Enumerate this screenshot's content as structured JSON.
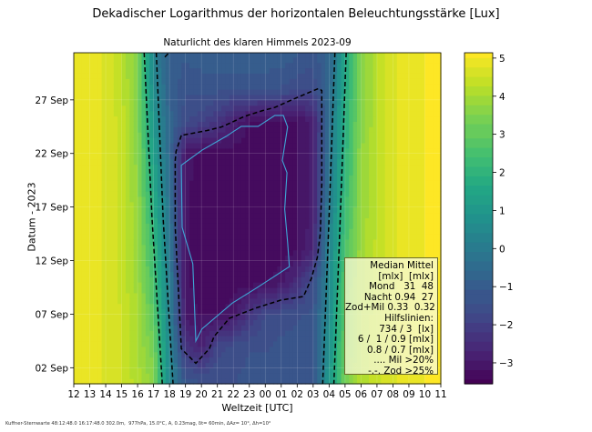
{
  "title": "Dekadischer Logarithmus der horizontalen Beleuchtungsstärke [Lux]",
  "footer": "Kuffner-Sternwarte 48:12:48.0 16:17:48.0 302.0m,  977hPa, 15.0°C, A, 0.23mag, δt= 60min, ΔAz= 10°, Δh=10°",
  "legend": {
    "lines": [
      "Median Mittel",
      "[mlx]  [mlx]",
      "Mond   31  48",
      "Nacht 0.94  27",
      "Zod+Mil 0.33  0.32",
      "Hilfslinien:",
      "734 / 3  [lx]",
      "6 /  1 / 0.9 [mlx]",
      "0.8 / 0.7 [mlx]",
      ".... Mil >20%",
      "-.-. Zod >25%"
    ]
  },
  "chart_data": {
    "type": "heatmap",
    "title": "Naturlicht des klaren Himmels 2023-09",
    "xlabel": "Weltzeit [UTC]",
    "ylabel": "Datum - 2023",
    "colormap": "viridis",
    "x_ticklabels": [
      "12",
      "13",
      "14",
      "15",
      "16",
      "17",
      "18",
      "19",
      "20",
      "21",
      "22",
      "23",
      "00",
      "01",
      "02",
      "03",
      "04",
      "05",
      "06",
      "07",
      "08",
      "09",
      "10",
      "11"
    ],
    "x_hours_since_12utc_range": [
      0,
      23
    ],
    "y_ticks": [
      {
        "day": 2,
        "label": "02 Sep"
      },
      {
        "day": 7,
        "label": "07 Sep"
      },
      {
        "day": 12,
        "label": "12 Sep"
      },
      {
        "day": 17,
        "label": "17 Sep"
      },
      {
        "day": 22,
        "label": "22 Sep"
      },
      {
        "day": 27,
        "label": "27 Sep"
      }
    ],
    "y_day_range": [
      0.5,
      31.4
    ],
    "colorbar": {
      "range": [
        -3.55,
        5.14
      ],
      "ticks": [
        5,
        4,
        3,
        2,
        1,
        0,
        -1,
        -2,
        -3
      ],
      "tick_labels": [
        "5",
        "4",
        "3",
        "2",
        "1",
        "0",
        "−1",
        "−2",
        "−3"
      ]
    },
    "grid": true,
    "legend_placement": "bottom-right",
    "z_rows_days": [
      1,
      4,
      7,
      10,
      13,
      16,
      19,
      22,
      25,
      28,
      31
    ],
    "z_log10_lux": [
      [
        5.0,
        4.9,
        4.7,
        4.5,
        4.1,
        3.6,
        0.5,
        -1.3,
        -1.4,
        -1.4,
        -1.4,
        -1.3,
        -1.3,
        -1.3,
        -1.3,
        -1.2,
        1.0,
        3.3,
        4.1,
        4.4,
        4.7,
        4.9,
        5.0,
        5.1
      ],
      [
        5.0,
        4.9,
        4.7,
        4.5,
        4.0,
        3.3,
        0.4,
        -2.2,
        -2.8,
        -1.8,
        -1.5,
        -1.4,
        -1.4,
        -1.3,
        -1.3,
        -1.2,
        0.8,
        3.1,
        4.0,
        4.4,
        4.7,
        4.9,
        5.0,
        5.1
      ],
      [
        5.0,
        4.9,
        4.7,
        4.5,
        4.0,
        2.9,
        0.2,
        -3.0,
        -3.2,
        -3.2,
        -3.0,
        -2.2,
        -1.6,
        -1.5,
        -1.4,
        -1.3,
        0.6,
        2.9,
        4.0,
        4.4,
        4.7,
        4.9,
        5.0,
        5.1
      ],
      [
        5.0,
        4.9,
        4.7,
        4.4,
        3.9,
        2.6,
        0.1,
        -3.1,
        -3.3,
        -3.3,
        -3.3,
        -3.3,
        -3.2,
        -3.0,
        -2.4,
        -1.5,
        0.5,
        2.8,
        3.9,
        4.3,
        4.7,
        4.9,
        5.0,
        5.1
      ],
      [
        5.0,
        4.9,
        4.7,
        4.4,
        3.8,
        2.3,
        -0.1,
        -3.1,
        -3.3,
        -3.3,
        -3.3,
        -3.3,
        -3.3,
        -3.3,
        -3.2,
        -2.6,
        0.3,
        2.6,
        3.9,
        4.3,
        4.7,
        4.9,
        5.0,
        5.1
      ],
      [
        5.0,
        4.9,
        4.7,
        4.4,
        3.8,
        2.0,
        -0.3,
        -3.1,
        -3.3,
        -3.3,
        -3.3,
        -3.3,
        -3.3,
        -3.3,
        -3.2,
        -2.8,
        0.1,
        2.4,
        3.8,
        4.3,
        4.7,
        4.9,
        5.0,
        5.1
      ],
      [
        5.0,
        4.9,
        4.7,
        4.4,
        3.7,
        1.6,
        -0.4,
        -3.1,
        -3.3,
        -3.3,
        -3.3,
        -3.3,
        -3.3,
        -3.3,
        -3.2,
        -2.8,
        -0.1,
        2.2,
        3.7,
        4.3,
        4.7,
        4.9,
        5.0,
        5.1
      ],
      [
        5.0,
        4.9,
        4.7,
        4.4,
        3.6,
        1.3,
        -0.6,
        -3.0,
        -3.3,
        -3.3,
        -3.3,
        -3.3,
        -3.3,
        -3.3,
        -3.2,
        -2.8,
        -0.3,
        2.0,
        3.7,
        4.3,
        4.7,
        4.9,
        5.0,
        5.1
      ],
      [
        5.0,
        4.9,
        4.7,
        4.4,
        3.5,
        1.0,
        -0.7,
        -1.6,
        -1.8,
        -2.2,
        -2.8,
        -3.2,
        -3.3,
        -3.3,
        -3.2,
        -2.8,
        -0.4,
        1.9,
        3.6,
        4.2,
        4.7,
        4.9,
        5.0,
        5.1
      ],
      [
        5.0,
        4.9,
        4.7,
        4.3,
        3.5,
        0.6,
        -0.9,
        -1.3,
        -1.3,
        -1.3,
        -1.3,
        -1.3,
        -1.4,
        -1.4,
        -1.6,
        -1.6,
        -0.6,
        1.7,
        3.6,
        4.2,
        4.7,
        4.9,
        5.0,
        5.1
      ],
      [
        5.0,
        4.9,
        4.7,
        4.3,
        3.4,
        0.3,
        -1.0,
        -1.1,
        -1.0,
        -0.9,
        -0.9,
        -0.9,
        -0.9,
        -1.0,
        -1.1,
        -1.3,
        -0.8,
        1.5,
        3.5,
        4.2,
        4.7,
        4.9,
        5.0,
        5.1
      ]
    ],
    "contour_lines": [
      {
        "style": "dashed",
        "color": "#000000",
        "points": [
          [
            4.41,
            31.4
          ],
          [
            4.9,
            16
          ],
          [
            5.55,
            0.5
          ]
        ]
      },
      {
        "style": "dashed",
        "color": "#000000",
        "points": [
          [
            5.17,
            31.4
          ],
          [
            5.6,
            16
          ],
          [
            6.22,
            0.5
          ]
        ]
      },
      {
        "style": "dashed",
        "color": "#000000",
        "points": [
          [
            16.36,
            31.4
          ],
          [
            16.0,
            16
          ],
          [
            15.6,
            0.5
          ]
        ]
      },
      {
        "style": "dashed",
        "color": "#000000",
        "points": [
          [
            17.07,
            31.4
          ],
          [
            16.7,
            16
          ],
          [
            16.3,
            0.5
          ]
        ]
      },
      {
        "style": "dashed",
        "color": "#000000",
        "points": [
          [
            5.71,
            31.0
          ],
          [
            5.97,
            31.4
          ]
        ]
      },
      {
        "style": "dashed",
        "color": "#000000",
        "closed": true,
        "points": [
          [
            6.74,
            23.68
          ],
          [
            6.41,
            22.2
          ],
          [
            6.36,
            21.35
          ],
          [
            6.36,
            15.1
          ],
          [
            6.74,
            3.78
          ],
          [
            7.65,
            2.42
          ],
          [
            8.5,
            3.78
          ],
          [
            8.79,
            4.91
          ],
          [
            9.74,
            6.61
          ],
          [
            11.45,
            7.6
          ],
          [
            12.97,
            8.31
          ],
          [
            14.4,
            8.65
          ],
          [
            14.88,
            10.3
          ],
          [
            15.26,
            12.28
          ],
          [
            15.45,
            14.55
          ],
          [
            15.54,
            19.08
          ],
          [
            15.54,
            27.87
          ],
          [
            15.35,
            28.07
          ],
          [
            14.12,
            27.3
          ],
          [
            12.6,
            26.3
          ],
          [
            11.83,
            26.0
          ],
          [
            10.69,
            25.46
          ],
          [
            9.26,
            24.47
          ],
          [
            8.32,
            24.13
          ]
        ]
      },
      {
        "style": "solid",
        "color": "#3fa7d6",
        "closed": true,
        "points": [
          [
            6.74,
            20.8
          ],
          [
            6.79,
            15.1
          ],
          [
            7.46,
            11.7
          ],
          [
            7.65,
            4.49
          ],
          [
            8.03,
            5.62
          ],
          [
            9.93,
            8.03
          ],
          [
            11.45,
            9.44
          ],
          [
            13.51,
            11.43
          ],
          [
            13.4,
            13.7
          ],
          [
            13.22,
            16.8
          ],
          [
            13.36,
            20.2
          ],
          [
            13.07,
            21.35
          ],
          [
            13.4,
            24.47
          ],
          [
            13.13,
            25.55
          ],
          [
            12.6,
            25.55
          ],
          [
            11.55,
            24.53
          ],
          [
            10.5,
            24.53
          ],
          [
            9.55,
            23.6
          ],
          [
            8.03,
            22.3
          ],
          [
            6.74,
            20.9
          ]
        ]
      }
    ]
  }
}
